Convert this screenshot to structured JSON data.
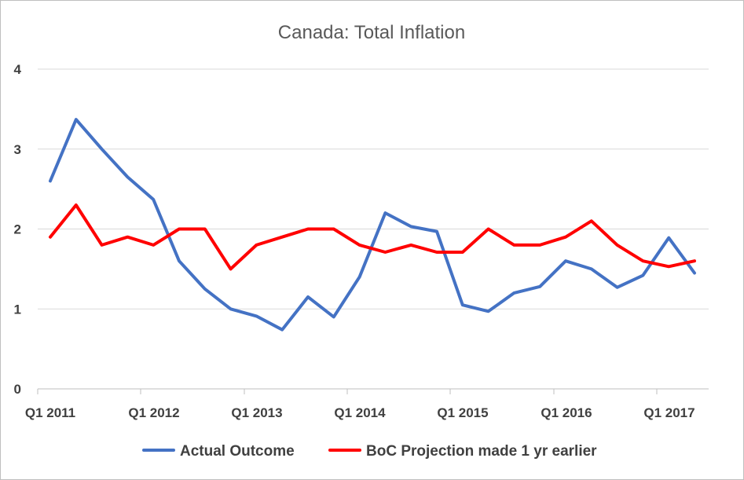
{
  "chart_data": {
    "type": "line",
    "title": "Canada: Total Inflation",
    "xlabel": "",
    "ylabel": "",
    "ylim": [
      0,
      4
    ],
    "yticks": [
      "0",
      "1",
      "2",
      "3",
      "4"
    ],
    "x_tick_labels": [
      "Q1 2011",
      "Q1 2012",
      "Q1 2013",
      "Q1 2014",
      "Q1 2015",
      "Q1 2016",
      "Q1 2017"
    ],
    "categories": [
      "Q1 2011",
      "Q2 2011",
      "Q3 2011",
      "Q4 2011",
      "Q1 2012",
      "Q2 2012",
      "Q3 2012",
      "Q4 2012",
      "Q1 2013",
      "Q2 2013",
      "Q3 2013",
      "Q4 2013",
      "Q1 2014",
      "Q2 2014",
      "Q3 2014",
      "Q4 2014",
      "Q1 2015",
      "Q2 2015",
      "Q3 2015",
      "Q4 2015",
      "Q1 2016",
      "Q2 2016",
      "Q3 2016",
      "Q4 2016",
      "Q1 2017",
      "Q2 2017"
    ],
    "grid": true,
    "legend_position": "bottom",
    "series": [
      {
        "name": "Actual Outcome",
        "color": "#4472c4",
        "values": [
          2.6,
          3.37,
          3.0,
          2.65,
          2.37,
          1.6,
          1.25,
          1.0,
          0.91,
          0.74,
          1.15,
          0.9,
          1.4,
          2.2,
          2.03,
          1.97,
          1.05,
          0.97,
          1.2,
          1.28,
          1.6,
          1.5,
          1.27,
          1.42,
          1.89,
          1.45
        ]
      },
      {
        "name": "BoC Projection made 1 yr earlier",
        "color": "#ff0000",
        "values": [
          1.9,
          2.3,
          1.8,
          1.9,
          1.8,
          2.0,
          2.0,
          1.5,
          1.8,
          1.9,
          2.0,
          2.0,
          1.8,
          1.71,
          1.8,
          1.71,
          1.71,
          2.0,
          1.8,
          1.8,
          1.9,
          2.1,
          1.8,
          1.6,
          1.53,
          1.6
        ]
      }
    ]
  }
}
